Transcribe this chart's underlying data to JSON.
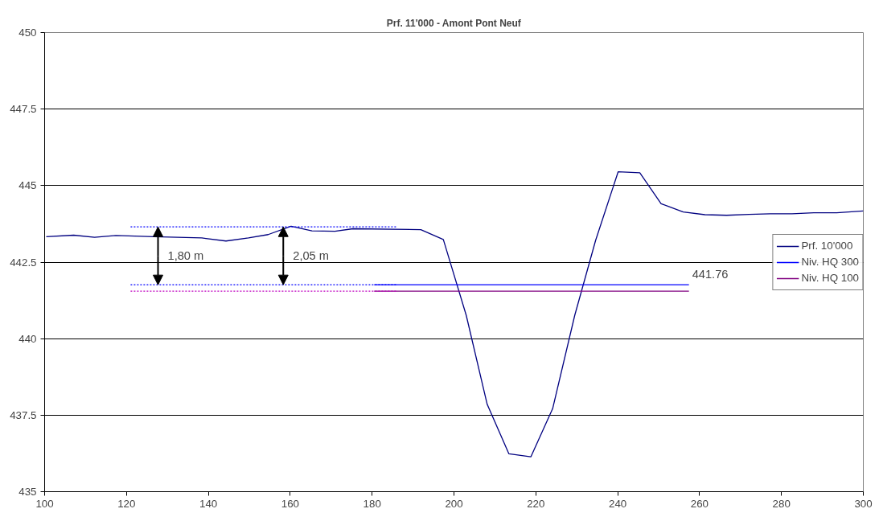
{
  "chart_data": {
    "type": "line",
    "title": "Prf. 11'000 - Amont Pont Neuf",
    "xlim": [
      100,
      300
    ],
    "xticks": [
      100,
      120,
      140,
      160,
      180,
      200,
      220,
      240,
      260,
      280,
      300
    ],
    "ylim": [
      435,
      450
    ],
    "yticks": [
      435,
      437.5,
      440,
      442.5,
      445,
      447.5,
      450
    ],
    "grid": "y",
    "legend": "right",
    "series": [
      {
        "name": "Prf. 10'000",
        "color": "#000080",
        "x": [
          100.4,
          107.1,
          112.2,
          117.4,
          126.6,
          138.4,
          144.3,
          149.8,
          154.6,
          160.2,
          165.3,
          170.9,
          175.3,
          191.9,
          197.4,
          203.0,
          208.1,
          213.4,
          218.8,
          224.1,
          229.5,
          234.6,
          240.1,
          245.4,
          250.6,
          256.0,
          261.3,
          266.6,
          272.1,
          277.3,
          282.6,
          287.9,
          293.5,
          300
        ],
        "values": [
          443.33,
          443.38,
          443.31,
          443.37,
          443.33,
          443.29,
          443.19,
          443.29,
          443.4,
          443.67,
          443.52,
          443.51,
          443.59,
          443.56,
          443.24,
          440.76,
          437.86,
          436.24,
          436.14,
          437.71,
          440.76,
          443.21,
          445.45,
          445.42,
          444.41,
          444.14,
          444.05,
          444.03,
          444.06,
          444.08,
          444.08,
          444.11,
          444.11,
          444.17
        ]
      },
      {
        "name": "Niv. HQ 300",
        "color": "#0000ff",
        "x": [
          180.5,
          257.4
        ],
        "values": [
          441.76,
          441.76
        ],
        "value_labels": [
          null,
          "441.76"
        ]
      },
      {
        "name": "Niv. HQ 100",
        "color": "#800080",
        "x": [
          180.5,
          257.4
        ],
        "values": [
          441.55,
          441.55
        ]
      },
      {
        "color": "#0000ff",
        "line_style": "dotted",
        "x": [
          121,
          186
        ],
        "values": [
          443.65,
          443.65
        ]
      },
      {
        "color": "#0000ff",
        "line_style": "dotted",
        "x": [
          121,
          186
        ],
        "values": [
          441.76,
          441.76
        ]
      },
      {
        "color": "#c000c0",
        "line_style": "dotted",
        "x": [
          121,
          186
        ],
        "values": [
          441.55,
          441.55
        ]
      }
    ],
    "annotations": [
      {
        "text": "1,80 m",
        "x": 127.7,
        "y": 443.65
      },
      {
        "text": "2,05 m",
        "x": 158.3,
        "y": 443.65
      }
    ]
  }
}
